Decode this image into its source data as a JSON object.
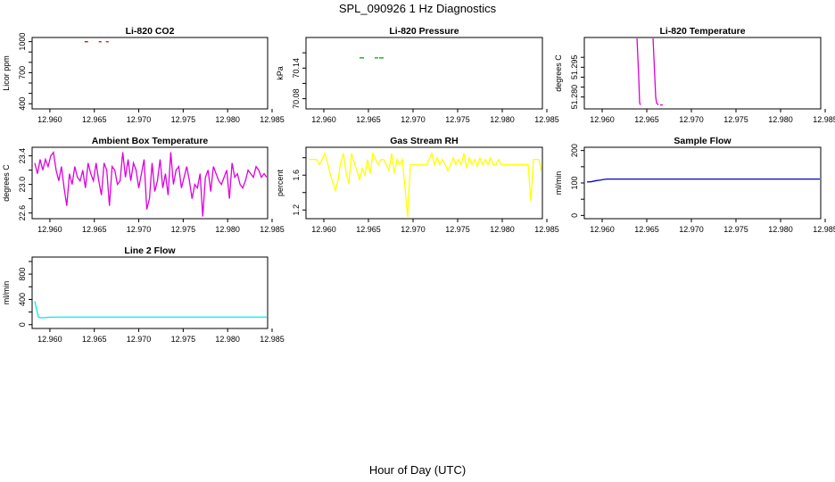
{
  "figure": {
    "title": "SPL_090926  1 Hz Diagnostics",
    "xlabel": "Hour of Day (UTC)"
  },
  "chart_data": [
    {
      "type": "line",
      "title": "Li-820 CO2",
      "ylabel": "Licor ppm",
      "color": "#dd0000",
      "xlim": [
        12.958,
        12.9845
      ],
      "ylim": [
        350,
        1040
      ],
      "yticks": [
        "400",
        "700",
        "1000"
      ],
      "yticks_all": [
        400,
        500,
        600,
        700,
        800,
        900,
        1000
      ],
      "xticks": [
        "12.960",
        "12.965",
        "12.970",
        "12.975",
        "12.980",
        "12.985"
      ],
      "segments": [
        [
          [
            12.9639,
            999
          ],
          [
            12.9643,
            999
          ]
        ],
        [
          [
            12.9655,
            999
          ],
          [
            12.9658,
            999
          ]
        ],
        [
          [
            12.9663,
            999
          ],
          [
            12.9666,
            999
          ]
        ]
      ]
    },
    {
      "type": "line",
      "title": "Li-820 Pressure",
      "ylabel": "kPa",
      "color": "#00aa00",
      "xlim": [
        12.958,
        12.9845
      ],
      "ylim": [
        70.06,
        70.2
      ],
      "yticks": [
        "70.08",
        "70.14"
      ],
      "yticks_all": [
        70.08,
        70.11,
        70.14,
        70.17
      ],
      "xticks": [
        "12.960",
        "12.965",
        "12.970",
        "12.975",
        "12.980",
        "12.985"
      ],
      "segments": [
        [
          [
            12.964,
            70.16
          ],
          [
            12.9645,
            70.16
          ]
        ],
        [
          [
            12.9657,
            70.16
          ],
          [
            12.9661,
            70.16
          ]
        ],
        [
          [
            12.9662,
            70.16
          ],
          [
            12.9667,
            70.16
          ]
        ]
      ]
    },
    {
      "type": "line",
      "title": "Li-820 Temperature",
      "ylabel": "degrees C",
      "color": "#dd00dd",
      "xlim": [
        12.958,
        12.9845
      ],
      "ylim": [
        51.274,
        51.31
      ],
      "yticks": [
        "51.280",
        "51.295"
      ],
      "yticks_all": [
        51.28,
        51.285,
        51.29,
        51.295,
        51.3
      ],
      "xticks": [
        "12.960",
        "12.965",
        "12.970",
        "12.975",
        "12.980",
        "12.985"
      ],
      "segments": [
        [
          [
            12.9639,
            51.31
          ],
          [
            12.964,
            51.3
          ],
          [
            12.9641,
            51.29
          ],
          [
            12.9642,
            51.277
          ],
          [
            12.9643,
            51.276
          ]
        ],
        [
          [
            12.9657,
            51.31
          ],
          [
            12.9658,
            51.3
          ],
          [
            12.9659,
            51.29
          ],
          [
            12.966,
            51.28
          ],
          [
            12.9661,
            51.277
          ],
          [
            12.9663,
            51.276
          ]
        ],
        [
          [
            12.9665,
            51.276
          ],
          [
            12.9668,
            51.276
          ]
        ]
      ]
    },
    {
      "type": "line",
      "title": "Ambient Box Temperature",
      "ylabel": "degrees C",
      "color": "#dd00dd",
      "xlim": [
        12.958,
        12.9845
      ],
      "ylim": [
        22.52,
        23.52
      ],
      "yticks": [
        "22.6",
        "23.0",
        "23.4"
      ],
      "yticks_all": [
        22.6,
        22.8,
        23.0,
        23.2,
        23.4
      ],
      "xticks": [
        "12.960",
        "12.965",
        "12.970",
        "12.975",
        "12.980",
        "12.985"
      ],
      "x": [
        12.9583,
        12.9586,
        12.9589,
        12.9592,
        12.9595,
        12.9598,
        12.9601,
        12.9604,
        12.9607,
        12.961,
        12.9613,
        12.9616,
        12.9619,
        12.9622,
        12.9625,
        12.9628,
        12.9631,
        12.9634,
        12.9637,
        12.964,
        12.9643,
        12.9646,
        12.9649,
        12.9652,
        12.9655,
        12.9658,
        12.9661,
        12.9664,
        12.9667,
        12.967,
        12.9673,
        12.9676,
        12.9679,
        12.9682,
        12.9685,
        12.9688,
        12.9691,
        12.9694,
        12.9697,
        12.97,
        12.9703,
        12.9706,
        12.9709,
        12.9712,
        12.9715,
        12.9718,
        12.9721,
        12.9724,
        12.9727,
        12.973,
        12.9733,
        12.9736,
        12.9739,
        12.9742,
        12.9745,
        12.9748,
        12.9751,
        12.9754,
        12.9757,
        12.976,
        12.9763,
        12.9766,
        12.9769,
        12.9772,
        12.9775,
        12.9778,
        12.9781,
        12.9784,
        12.9787,
        12.979,
        12.9793,
        12.9796,
        12.9799,
        12.9802,
        12.9805,
        12.9808,
        12.9811,
        12.9814,
        12.9817,
        12.982,
        12.9823,
        12.9826,
        12.9829,
        12.9832,
        12.9835,
        12.9838,
        12.9841,
        12.9844
      ],
      "y": [
        23.3,
        23.15,
        23.35,
        23.2,
        23.35,
        23.25,
        23.4,
        23.45,
        23.2,
        23.05,
        23.25,
        22.95,
        22.7,
        23.15,
        23.0,
        23.25,
        23.1,
        23.05,
        23.2,
        22.95,
        23.3,
        23.15,
        23.05,
        23.3,
        23.05,
        22.85,
        23.3,
        23.2,
        22.7,
        23.25,
        23.2,
        23.0,
        23.05,
        23.45,
        23.1,
        23.35,
        23.05,
        23.3,
        23.2,
        22.95,
        23.15,
        23.35,
        22.65,
        22.8,
        23.3,
        22.9,
        23.05,
        23.35,
        22.95,
        23.15,
        22.85,
        23.45,
        23.0,
        23.2,
        23.25,
        22.95,
        23.1,
        23.25,
        23.05,
        22.8,
        23.0,
        22.95,
        23.15,
        22.55,
        23.1,
        23.2,
        22.9,
        23.25,
        23.15,
        23.05,
        23.0,
        23.1,
        23.2,
        22.8,
        23.3,
        23.1,
        23.15,
        23.0,
        22.95,
        23.05,
        23.2,
        23.15,
        23.1,
        23.25,
        23.2,
        23.1,
        23.15,
        23.1
      ]
    },
    {
      "type": "line",
      "title": "Gas Stream RH",
      "ylabel": "percent",
      "color": "#ffff00",
      "xlim": [
        12.958,
        12.9845
      ],
      "ylim": [
        1.1,
        1.92
      ],
      "yticks": [
        "1.2",
        "1.6"
      ],
      "yticks_all": [
        1.2,
        1.4,
        1.6,
        1.8
      ],
      "xticks": [
        "12.960",
        "12.965",
        "12.970",
        "12.975",
        "12.980",
        "12.985"
      ],
      "x": [
        12.9583,
        12.9586,
        12.9589,
        12.9592,
        12.9595,
        12.9598,
        12.9601,
        12.9604,
        12.9607,
        12.961,
        12.9613,
        12.9616,
        12.9619,
        12.9622,
        12.9625,
        12.9628,
        12.9631,
        12.9634,
        12.9637,
        12.964,
        12.9643,
        12.9646,
        12.9649,
        12.9652,
        12.9655,
        12.9658,
        12.9661,
        12.9664,
        12.9667,
        12.967,
        12.9673,
        12.9676,
        12.9679,
        12.9682,
        12.9685,
        12.9688,
        12.9691,
        12.9694,
        12.9697,
        12.97,
        12.9703,
        12.9706,
        12.9709,
        12.9712,
        12.9715,
        12.9718,
        12.9721,
        12.9724,
        12.9727,
        12.973,
        12.9733,
        12.9736,
        12.9739,
        12.9742,
        12.9745,
        12.9748,
        12.9751,
        12.9754,
        12.9757,
        12.976,
        12.9763,
        12.9766,
        12.9769,
        12.9772,
        12.9775,
        12.9778,
        12.9781,
        12.9784,
        12.9787,
        12.979,
        12.9793,
        12.9796,
        12.9799,
        12.9802,
        12.9805,
        12.9808,
        12.9811,
        12.9814,
        12.9817,
        12.982,
        12.9823,
        12.9826,
        12.9829,
        12.9832,
        12.9835,
        12.9838,
        12.9841,
        12.9844
      ],
      "y": [
        1.78,
        1.78,
        1.78,
        1.78,
        1.72,
        1.78,
        1.85,
        1.75,
        1.62,
        1.52,
        1.42,
        1.55,
        1.75,
        1.85,
        1.62,
        1.5,
        1.85,
        1.75,
        1.65,
        1.55,
        1.68,
        1.6,
        1.78,
        1.62,
        1.85,
        1.78,
        1.72,
        1.78,
        1.78,
        1.72,
        1.65,
        1.85,
        1.62,
        1.78,
        1.72,
        1.78,
        1.45,
        1.12,
        1.72,
        1.72,
        1.72,
        1.72,
        1.72,
        1.72,
        1.72,
        1.78,
        1.85,
        1.72,
        1.8,
        1.72,
        1.78,
        1.72,
        1.65,
        1.72,
        1.8,
        1.72,
        1.78,
        1.72,
        1.85,
        1.68,
        1.8,
        1.72,
        1.78,
        1.7,
        1.8,
        1.72,
        1.78,
        1.72,
        1.8,
        1.72,
        1.72,
        1.78,
        1.72,
        1.72,
        1.72,
        1.72,
        1.72,
        1.72,
        1.72,
        1.72,
        1.72,
        1.72,
        1.72,
        1.3,
        1.78,
        1.78,
        1.78,
        1.65
      ]
    },
    {
      "type": "line",
      "title": "Sample Flow",
      "ylabel": "ml/min",
      "color": "#0000cc",
      "xlim": [
        12.958,
        12.9845
      ],
      "ylim": [
        -10,
        210
      ],
      "yticks": [
        "0",
        "100",
        "200"
      ],
      "yticks_all": [
        0,
        50,
        100,
        150,
        200
      ],
      "xticks": [
        "12.960",
        "12.965",
        "12.970",
        "12.975",
        "12.980",
        "12.985"
      ],
      "x": [
        12.9583,
        12.9588,
        12.9593,
        12.9598,
        12.9602,
        12.9606,
        12.961,
        12.962,
        12.963,
        12.964,
        12.965,
        12.966,
        12.967,
        12.968,
        12.97,
        12.972,
        12.974,
        12.976,
        12.978,
        12.98,
        12.982,
        12.9844
      ],
      "y": [
        103,
        104,
        107,
        109,
        111,
        112,
        112,
        112,
        112,
        112,
        112,
        112,
        112,
        112,
        112,
        112,
        112,
        112,
        112,
        112,
        112,
        112
      ]
    },
    {
      "type": "line",
      "title": "Line 2 Flow",
      "ylabel": "ml/min",
      "color": "#00eeee",
      "xlim": [
        12.958,
        12.9845
      ],
      "ylim": [
        -60,
        1070
      ],
      "yticks": [
        "0",
        "400",
        "800"
      ],
      "yticks_all": [
        0,
        200,
        400,
        600,
        800,
        1000
      ],
      "xticks": [
        "12.960",
        "12.965",
        "12.970",
        "12.975",
        "12.980",
        "12.985"
      ],
      "x": [
        12.9583,
        12.9585,
        12.9587,
        12.959,
        12.9595,
        12.96,
        12.961,
        12.965,
        12.97,
        12.975,
        12.98,
        12.9844
      ],
      "y": [
        370,
        250,
        120,
        110,
        112,
        118,
        120,
        120,
        120,
        120,
        120,
        120
      ]
    }
  ]
}
